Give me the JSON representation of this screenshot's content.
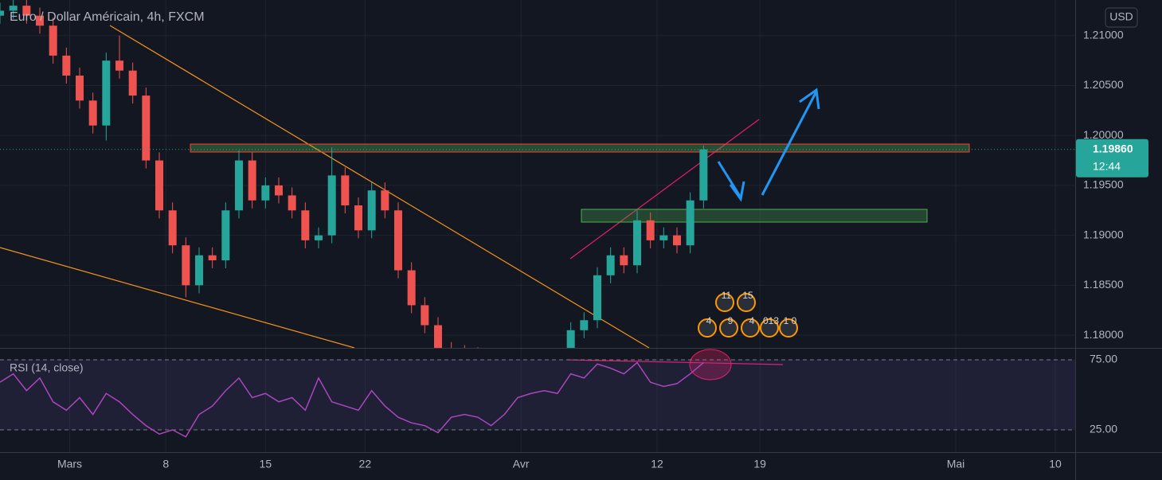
{
  "chart_data": [
    {
      "type": "candlestick",
      "title": "Euro / Dollar Américain, 4h, FXCM",
      "currency": "USD",
      "up_color": "#26a69a",
      "down_color": "#ef5350",
      "x": [
        0,
        4,
        8,
        12,
        16,
        20,
        24,
        28,
        32,
        36,
        40,
        44,
        48,
        52,
        56,
        60,
        64,
        68,
        72,
        76,
        80,
        84,
        88,
        92,
        96,
        100,
        104,
        108,
        112,
        116,
        120,
        124,
        128,
        132,
        136,
        140,
        144,
        148,
        152,
        156,
        160,
        164,
        168,
        172,
        176,
        180,
        184,
        188,
        192,
        196,
        200,
        204,
        208,
        212
      ],
      "open": [
        1.212,
        1.2125,
        1.213,
        1.212,
        1.211,
        1.208,
        1.206,
        1.2035,
        1.201,
        1.2075,
        1.2065,
        1.204,
        1.1975,
        1.1925,
        1.189,
        1.185,
        1.188,
        1.1875,
        1.1925,
        1.1975,
        1.1935,
        1.195,
        1.194,
        1.1925,
        1.1895,
        1.19,
        1.196,
        1.193,
        1.1905,
        1.1945,
        1.1925,
        1.1865,
        1.183,
        1.181,
        1.1785,
        1.1782,
        1.178,
        1.177,
        1.176,
        1.175,
        1.1745,
        1.1755,
        1.176,
        1.177,
        1.1805,
        1.1815,
        1.186,
        1.188,
        1.187,
        1.1915,
        1.1895,
        1.19,
        1.189,
        1.1935
      ],
      "high": [
        1.2133,
        1.2138,
        1.2138,
        1.2128,
        1.2118,
        1.2088,
        1.2068,
        1.2043,
        1.2083,
        1.21,
        1.2073,
        1.2048,
        1.1983,
        1.1933,
        1.1898,
        1.1888,
        1.1888,
        1.1933,
        1.1985,
        1.1983,
        1.1958,
        1.1958,
        1.1948,
        1.1933,
        1.1908,
        1.1988,
        1.1968,
        1.1938,
        1.1953,
        1.1953,
        1.1933,
        1.1873,
        1.1838,
        1.1818,
        1.1793,
        1.179,
        1.1788,
        1.1778,
        1.1768,
        1.1758,
        1.1763,
        1.1768,
        1.1778,
        1.1813,
        1.1823,
        1.1868,
        1.1888,
        1.1888,
        1.1925,
        1.1923,
        1.1908,
        1.1908,
        1.1943,
        1.199
      ],
      "low": [
        1.2112,
        1.2117,
        1.2112,
        1.2102,
        1.2072,
        1.2052,
        1.2027,
        1.2002,
        1.1995,
        1.2057,
        1.2032,
        1.1967,
        1.1917,
        1.1882,
        1.1838,
        1.1842,
        1.1867,
        1.1867,
        1.1917,
        1.1927,
        1.1927,
        1.1932,
        1.1917,
        1.1887,
        1.1887,
        1.1892,
        1.1922,
        1.1897,
        1.1897,
        1.1917,
        1.1857,
        1.1822,
        1.1802,
        1.1777,
        1.1774,
        1.1772,
        1.1762,
        1.1752,
        1.1742,
        1.1737,
        1.1737,
        1.1747,
        1.1752,
        1.1762,
        1.1797,
        1.1807,
        1.1852,
        1.1862,
        1.1862,
        1.1887,
        1.1887,
        1.1882,
        1.1882,
        1.1927
      ],
      "close": [
        1.2125,
        1.213,
        1.212,
        1.211,
        1.208,
        1.206,
        1.2035,
        1.201,
        1.2075,
        1.2065,
        1.204,
        1.1975,
        1.1925,
        1.189,
        1.185,
        1.188,
        1.1875,
        1.1925,
        1.1975,
        1.1935,
        1.195,
        1.194,
        1.1925,
        1.1895,
        1.19,
        1.196,
        1.193,
        1.1905,
        1.1945,
        1.1925,
        1.1865,
        1.183,
        1.181,
        1.1785,
        1.1782,
        1.178,
        1.177,
        1.176,
        1.175,
        1.1745,
        1.1755,
        1.176,
        1.177,
        1.1805,
        1.1815,
        1.186,
        1.188,
        1.187,
        1.1915,
        1.1895,
        1.19,
        1.189,
        1.1935,
        1.1986
      ],
      "xlim": [
        0,
        324
      ],
      "ylim": [
        1.17873,
        1.21357
      ],
      "yticks": [
        {
          "value": 1.18,
          "label": "1.18000"
        },
        {
          "value": 1.185,
          "label": "1.18500"
        },
        {
          "value": 1.19,
          "label": "1.19000"
        },
        {
          "value": 1.195,
          "label": "1.19500"
        },
        {
          "value": 1.2,
          "label": "1.20000"
        },
        {
          "value": 1.205,
          "label": "1.20500"
        },
        {
          "value": 1.21,
          "label": "1.21000"
        }
      ],
      "last_price": {
        "value": 1.1986,
        "label": "1.19860"
      },
      "countdown": "12:44",
      "tag_color": "#26a69a",
      "events": [
        "11",
        "15",
        "4",
        "9",
        "4",
        "013",
        "1 0"
      ]
    },
    {
      "type": "line",
      "title": "RSI (14, close)",
      "color": "#ab47bc",
      "band_color": "#7e57c2",
      "x": [
        0,
        4,
        8,
        12,
        16,
        20,
        24,
        28,
        32,
        36,
        40,
        44,
        48,
        52,
        56,
        60,
        64,
        68,
        72,
        76,
        80,
        84,
        88,
        92,
        96,
        100,
        104,
        108,
        112,
        116,
        120,
        124,
        128,
        132,
        136,
        140,
        144,
        148,
        152,
        156,
        160,
        164,
        168,
        172,
        176,
        180,
        184,
        188,
        192,
        196,
        200,
        204,
        208,
        212
      ],
      "values": [
        59,
        65,
        53,
        62,
        45,
        39,
        48,
        36,
        51,
        45,
        36,
        28,
        22,
        25,
        20,
        36,
        42,
        53,
        62,
        48,
        51,
        45,
        48,
        39,
        62,
        45,
        42,
        39,
        53,
        42,
        34,
        30,
        28,
        23,
        34,
        36,
        34,
        28,
        36,
        48,
        51,
        53,
        51,
        65,
        62,
        72,
        69,
        65,
        73,
        59,
        56,
        58,
        65,
        73
      ],
      "xlim": [
        0,
        324
      ],
      "ylim": [
        9.1,
        82.95
      ],
      "yticks": [
        {
          "value": 25,
          "label": "25.00"
        },
        {
          "value": 75,
          "label": "75.00"
        }
      ],
      "xticks": [
        {
          "value": 21,
          "label": "Mars"
        },
        {
          "value": 50,
          "label": "8"
        },
        {
          "value": 80,
          "label": "15"
        },
        {
          "value": 110,
          "label": "22"
        },
        {
          "value": 157,
          "label": "Avr"
        },
        {
          "value": 198,
          "label": "12"
        },
        {
          "value": 229,
          "label": "19"
        },
        {
          "value": 288,
          "label": "Mai"
        },
        {
          "value": 318,
          "label": "10"
        }
      ]
    }
  ]
}
